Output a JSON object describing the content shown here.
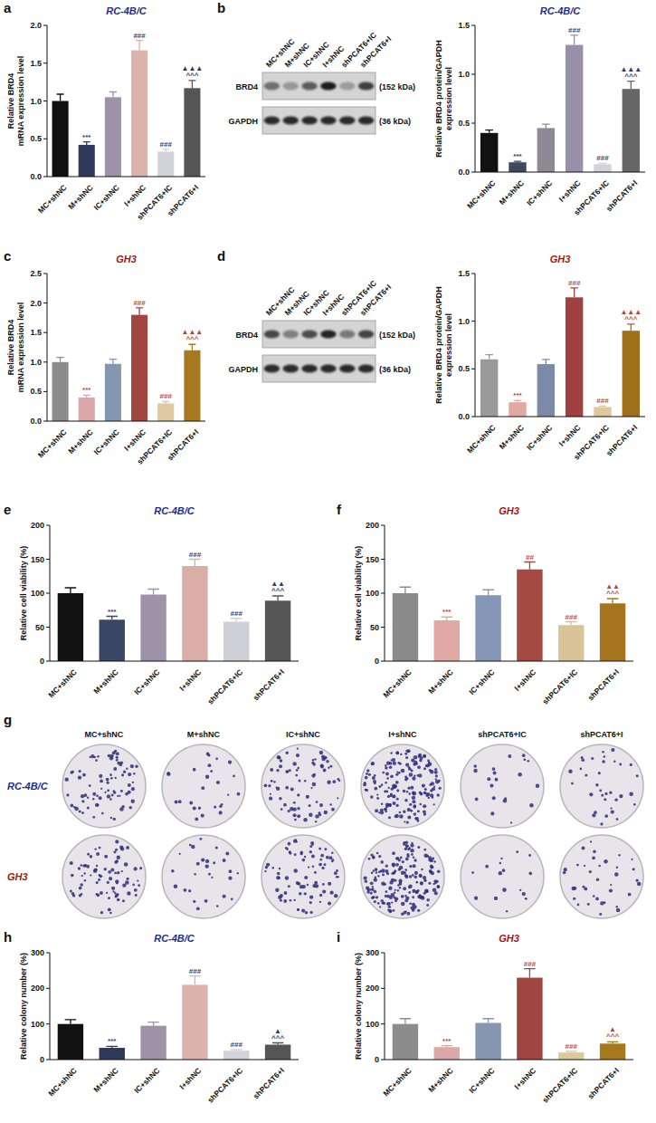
{
  "chart_data": [
    {
      "type": "bar",
      "panel_label": "a",
      "title": "RC-4B/C",
      "ylabel": "Relative BRD4\nmRNA expression level",
      "categories": [
        "MC+shNC",
        "M+shNC",
        "IC+shNC",
        "I+shNC",
        "shPCAT6+IC",
        "shPCAT6+I"
      ],
      "values": [
        1.0,
        0.42,
        1.05,
        1.67,
        0.33,
        1.17
      ],
      "errors": [
        0.09,
        0.04,
        0.07,
        0.13,
        0.03,
        0.1
      ],
      "annotations": [
        null,
        [
          "***"
        ],
        null,
        [
          "###"
        ],
        [
          "###"
        ],
        [
          "▲▲▲",
          "^^^"
        ]
      ],
      "colors": [
        "#111111",
        "#2f3a5a",
        "#9d92a8",
        "#dcb3ab",
        "#d2d2da",
        "#555555"
      ],
      "ylim": [
        0,
        2
      ],
      "yticks": [
        {
          "value": 0,
          "label": "0.0"
        },
        0.5,
        {
          "value": 1,
          "label": "1.0"
        },
        1.5,
        {
          "value": 2,
          "label": "2.0"
        }
      ]
    },
    {
      "type": "bar",
      "title": "RC-4B/C",
      "ylabel": "Relative BRD4 protein/GAPDH\nexpression level",
      "categories": [
        "MC+shNC",
        "M+shNC",
        "IC+shNC",
        "I+shNC",
        "shPCAT6+IC",
        "shPCAT6+I"
      ],
      "values": [
        0.4,
        0.1,
        0.45,
        1.3,
        0.08,
        0.85
      ],
      "errors": [
        0.03,
        0.01,
        0.04,
        0.1,
        0.01,
        0.08
      ],
      "annotations": [
        null,
        [
          "***"
        ],
        null,
        [
          "###"
        ],
        [
          "###"
        ],
        [
          "▲▲▲",
          "^^^"
        ]
      ],
      "colors": [
        "#111111",
        "#3d4a5e",
        "#8f8896",
        "#9a8fa8",
        "#d2d2da",
        "#666666"
      ],
      "ylim": [
        0,
        1.5
      ],
      "yticks": [
        {
          "value": 0,
          "label": "0.0"
        },
        0.5,
        {
          "value": 1,
          "label": "1.0"
        },
        1.5
      ]
    },
    {
      "type": "bar",
      "panel_label": "c",
      "title": "GH3",
      "ylabel": "Relative BRD4\nmRNA expression level",
      "categories": [
        "MC+shNC",
        "M+shNC",
        "IC+shNC",
        "I+shNC",
        "shPCAT6+IC",
        "shPCAT6+I"
      ],
      "values": [
        1.0,
        0.4,
        0.97,
        1.8,
        0.3,
        1.2
      ],
      "errors": [
        0.08,
        0.04,
        0.08,
        0.12,
        0.03,
        0.1
      ],
      "annotations": [
        null,
        [
          "***"
        ],
        null,
        [
          "###"
        ],
        [
          "###"
        ],
        [
          "▲▲▲",
          "^^^"
        ]
      ],
      "colors": [
        "#8c8c8c",
        "#dba7a7",
        "#8596b0",
        "#a0453f",
        "#ddc8a0",
        "#a7791e"
      ],
      "ylim": [
        0,
        2.5
      ],
      "yticks": [
        {
          "value": 0,
          "label": "0.0"
        },
        0.5,
        {
          "value": 1,
          "label": "1.0"
        },
        1.5,
        {
          "value": 2,
          "label": "2.0"
        },
        2.5
      ]
    },
    {
      "type": "bar",
      "title": "GH3",
      "ylabel": "Relative BRD4 protein/GAPDH\nexpression level",
      "categories": [
        "MC+shNC",
        "M+shNC",
        "IC+shNC",
        "I+shNC",
        "shPCAT6+IC",
        "shPCAT6+I"
      ],
      "values": [
        0.6,
        0.15,
        0.55,
        1.25,
        0.1,
        0.9
      ],
      "errors": [
        0.05,
        0.02,
        0.05,
        0.1,
        0.01,
        0.07
      ],
      "annotations": [
        null,
        [
          "***"
        ],
        null,
        [
          "###"
        ],
        [
          "###"
        ],
        [
          "▲▲▲",
          "^^^"
        ]
      ],
      "colors": [
        "#9a9a9a",
        "#e0aaa0",
        "#7c8aa8",
        "#a04040",
        "#ddc8a0",
        "#a06f1a"
      ],
      "ylim": [
        0,
        1.5
      ],
      "yticks": [
        {
          "value": 0,
          "label": "0.0"
        },
        0.5,
        {
          "value": 1,
          "label": "1.0"
        },
        1.5
      ]
    },
    {
      "type": "bar",
      "panel_label": "e",
      "title": "RC-4B/C",
      "ylabel": "Relative cell viability (%)",
      "categories": [
        "MC+shNC",
        "M+shNC",
        "IC+shNC",
        "I+shNC",
        "shPCAT6+IC",
        "shPCAT6+I"
      ],
      "values": [
        100,
        61,
        98,
        140,
        58,
        89
      ],
      "errors": [
        8,
        5,
        8,
        10,
        5,
        7
      ],
      "annotations": [
        null,
        [
          "***"
        ],
        null,
        [
          "###"
        ],
        [
          "###"
        ],
        [
          "▲▲",
          "^^^"
        ]
      ],
      "colors": [
        "#111111",
        "#3b4566",
        "#9d92a8",
        "#d9aea6",
        "#cfcfd8",
        "#555555"
      ],
      "ylim": [
        0,
        200
      ],
      "yticks": [
        0,
        50,
        100,
        150,
        200
      ]
    },
    {
      "type": "bar",
      "panel_label": "f",
      "title": "GH3",
      "ylabel": "Relative cell viability (%)",
      "categories": [
        "MC+shNC",
        "M+shNC",
        "IC+shNC",
        "I+shNC",
        "shPCAT6+IC",
        "shPCAT6+I"
      ],
      "values": [
        100,
        60,
        97,
        135,
        53,
        85
      ],
      "errors": [
        9,
        5,
        8,
        11,
        5,
        7
      ],
      "annotations": [
        null,
        [
          "***"
        ],
        null,
        [
          "##"
        ],
        [
          "###"
        ],
        [
          "▲▲",
          "^^^"
        ]
      ],
      "colors": [
        "#8a8a8a",
        "#e0a9a5",
        "#8596b7",
        "#a44a42",
        "#d9c49a",
        "#a6741e"
      ],
      "ylim": [
        0,
        200
      ],
      "yticks": [
        0,
        50,
        100,
        150,
        200
      ]
    },
    {
      "type": "bar",
      "panel_label": "h",
      "title": "RC-4B/C",
      "ylabel": "Relative colony number (%)",
      "categories": [
        "MC+shNC",
        "M+shNC",
        "IC+shNC",
        "I+shNC",
        "shPCAT6+IC",
        "shPCAT6+I"
      ],
      "values": [
        100,
        33,
        95,
        210,
        25,
        42
      ],
      "errors": [
        12,
        4,
        10,
        25,
        3,
        5
      ],
      "annotations": [
        null,
        [
          "***"
        ],
        null,
        [
          "###"
        ],
        [
          "###"
        ],
        [
          "▲",
          "^^^"
        ]
      ],
      "colors": [
        "#111111",
        "#2f3a5a",
        "#9d92a8",
        "#dcb3ab",
        "#d2d2da",
        "#555555"
      ],
      "ylim": [
        0,
        300
      ],
      "yticks": [
        0,
        100,
        200,
        300
      ]
    },
    {
      "type": "bar",
      "panel_label": "i",
      "title": "GH3",
      "ylabel": "Relative colony number (%)",
      "categories": [
        "MC+shNC",
        "M+shNC",
        "IC+shNC",
        "I+shNC",
        "shPCAT6+IC",
        "shPCAT6+I"
      ],
      "values": [
        100,
        35,
        103,
        230,
        20,
        45
      ],
      "errors": [
        15,
        4,
        12,
        25,
        3,
        5
      ],
      "annotations": [
        null,
        [
          "***"
        ],
        null,
        [
          "###"
        ],
        [
          "###"
        ],
        [
          "▲",
          "^^^"
        ]
      ],
      "colors": [
        "#8c8c8c",
        "#dba7a7",
        "#8596b0",
        "#a0453f",
        "#ddc8a0",
        "#a7791e"
      ],
      "ylim": [
        0,
        300
      ],
      "yticks": [
        0,
        100,
        200,
        300
      ]
    }
  ],
  "blots": [
    {
      "panel_label": "b",
      "lanes": [
        "MC+shNC",
        "M+shNC",
        "IC+shNC",
        "I+shNC",
        "shPCAT6+IC",
        "shPCAT6+I"
      ],
      "bands": [
        {
          "name": "BRD4",
          "size": "(152 kDa)"
        },
        {
          "name": "GAPDH",
          "size": "(36 kDa)"
        }
      ]
    },
    {
      "panel_label": "d",
      "lanes": [
        "MC+shNC",
        "M+shNC",
        "IC+shNC",
        "I+shNC",
        "shPCAT6+IC",
        "shPCAT6+I"
      ],
      "bands": [
        {
          "name": "BRD4",
          "size": "(152 kDa)"
        },
        {
          "name": "GAPDH",
          "size": "(36 kDa)"
        }
      ]
    }
  ],
  "colony_images": {
    "panel_label": "g",
    "columns": [
      "MC+shNC",
      "M+shNC",
      "IC+shNC",
      "I+shNC",
      "shPCAT6+IC",
      "shPCAT6+I"
    ],
    "rows": [
      "RC-4B/C",
      "GH3"
    ]
  }
}
